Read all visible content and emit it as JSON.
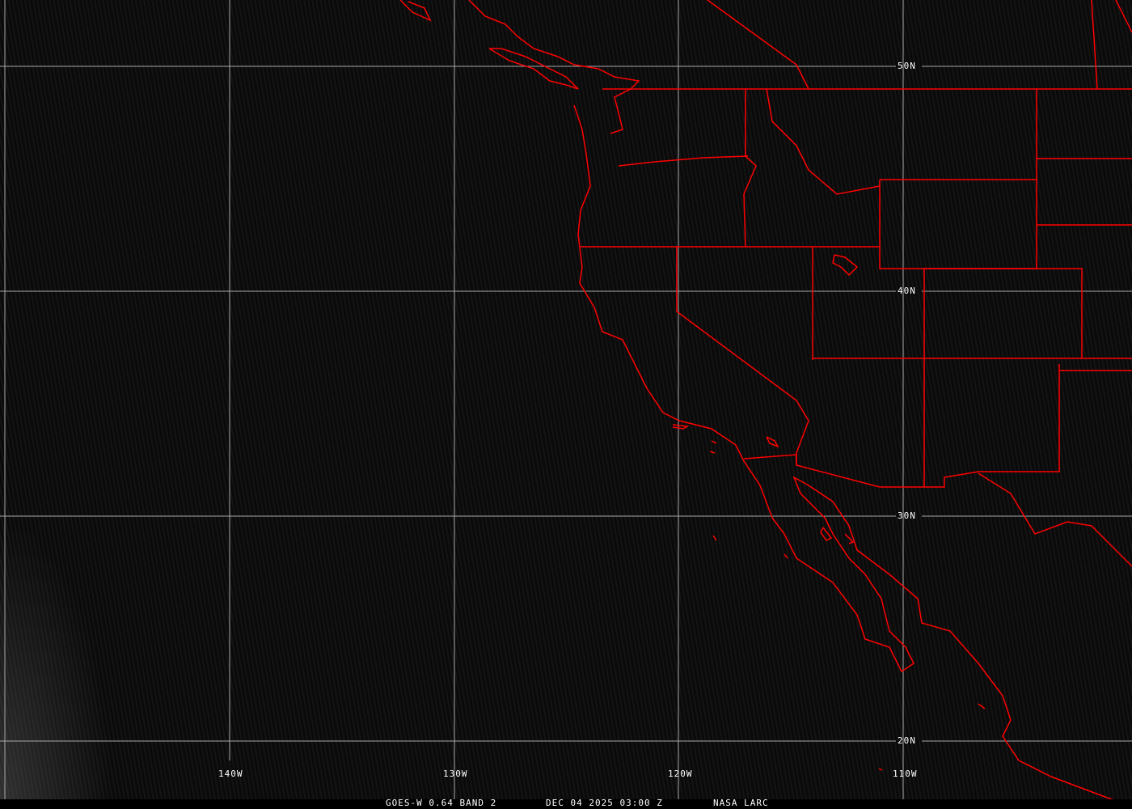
{
  "image": {
    "satellite": "GOES-W",
    "band_label": "GOES-W 0.64 BAND 2",
    "datetime": "DEC 04 2025 03:00 Z",
    "source": "NASA LARC"
  },
  "grid": {
    "longitude_labels": [
      "140W",
      "130W",
      "120W",
      "110W"
    ],
    "latitude_labels": [
      "50N",
      "40N",
      "30N",
      "20N"
    ]
  },
  "colors": {
    "grid": "#b0b0b0",
    "borders": "#ff0000",
    "background": "#0c0c0c",
    "text": "#ffffff"
  }
}
